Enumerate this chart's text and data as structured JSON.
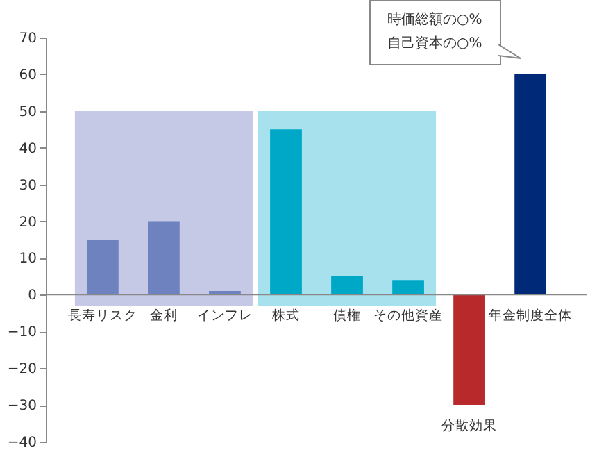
{
  "chart_data": {
    "type": "bar",
    "categories": [
      "長寿リスク",
      "金利",
      "インフレ",
      "株式",
      "債権",
      "その他資産",
      "分散効果",
      "年金制度全体"
    ],
    "values": [
      15,
      20,
      1,
      45,
      5,
      4,
      -30,
      60
    ],
    "colors": [
      "#6f82c0",
      "#6f82c0",
      "#6f82c0",
      "#00a8c8",
      "#00a8c8",
      "#00a8c8",
      "#b8292c",
      "#002a78"
    ],
    "ylim": [
      -40,
      70
    ],
    "yticks": [
      -40,
      -30,
      -20,
      -10,
      0,
      10,
      20,
      30,
      40,
      50,
      60,
      70
    ],
    "grid": false,
    "bands": [
      {
        "axis": "x",
        "from": "長寿リスク",
        "to": "インフレ",
        "color": "#c5c9e6"
      },
      {
        "axis": "x",
        "from": "株式",
        "to": "その他資産",
        "color": "#a8e1ee"
      }
    ],
    "annotations": [
      "時価総額の○%",
      "自己資本の○%"
    ]
  }
}
